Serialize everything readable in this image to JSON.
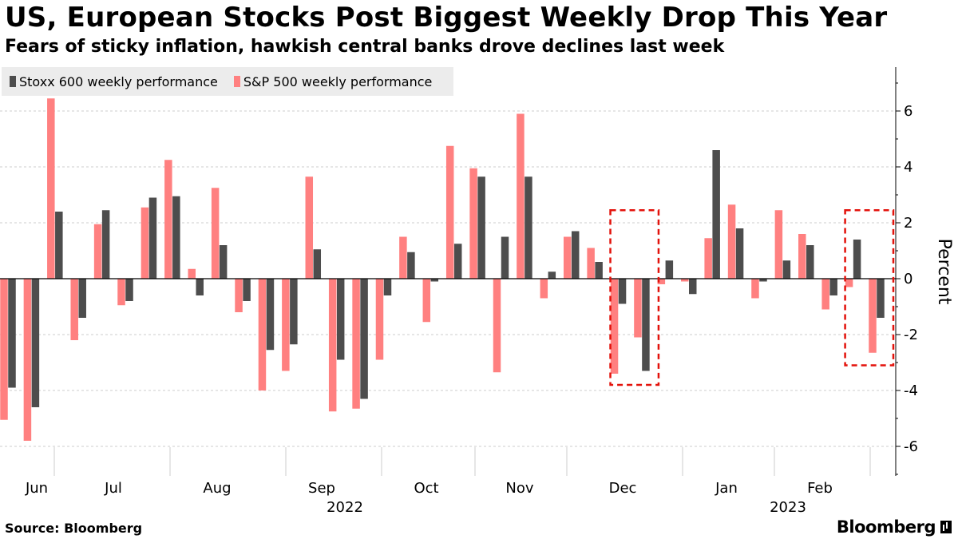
{
  "title": "US, European Stocks Post Biggest Weekly Drop This Year",
  "subtitle": "Fears of sticky inflation, hawkish central banks drove declines last week",
  "source": "Source: Bloomberg",
  "brand": "Bloomberg",
  "colors": {
    "stoxx": "#4d4d4d",
    "sp": "#ff8080",
    "highlight": "#e3120b",
    "grid": "#cccccc"
  },
  "chart_data": {
    "type": "bar",
    "ylabel": "Percent",
    "ylim": [
      -7,
      7.5
    ],
    "yticks": [
      -6,
      -4,
      -2,
      0,
      2,
      4,
      6
    ],
    "grid": "dashed horizontal at ticks",
    "legend": "top-left",
    "series": [
      {
        "name": "Stoxx 600 weekly performance",
        "values": [
          -3.9,
          -4.6,
          2.4,
          -1.4,
          2.45,
          -0.8,
          2.9,
          2.95,
          -0.6,
          1.2,
          -0.8,
          -2.55,
          -2.35,
          1.05,
          -2.9,
          -4.3,
          -0.6,
          0.95,
          -0.1,
          1.25,
          3.65,
          1.5,
          3.65,
          0.25,
          1.7,
          0.6,
          -0.9,
          -3.3,
          0.65,
          -0.55,
          4.6,
          1.8,
          -0.1,
          0.65,
          1.2,
          -0.6,
          1.4,
          -1.4
        ]
      },
      {
        "name": "S&P 500 weekly performance",
        "values": [
          -5.05,
          -5.8,
          6.45,
          -2.2,
          1.95,
          -0.95,
          2.55,
          4.25,
          0.35,
          3.25,
          -1.2,
          -4.0,
          -3.3,
          3.65,
          -4.75,
          -4.65,
          -2.9,
          1.5,
          -1.55,
          4.75,
          3.95,
          -3.35,
          5.9,
          -0.7,
          1.5,
          1.1,
          -3.4,
          -2.1,
          -0.2,
          -0.1,
          1.45,
          2.65,
          -0.7,
          2.45,
          1.6,
          -1.1,
          -0.3,
          -2.65
        ]
      }
    ],
    "x_month_labels": [
      "Jun",
      "Jul",
      "Aug",
      "Sep",
      "Oct",
      "Nov",
      "Dec",
      "Jan",
      "Feb"
    ],
    "x_year_labels": [
      "2022",
      "2023"
    ],
    "annotations": [
      {
        "type": "dashed-box",
        "from_week": 26,
        "to_week": 27,
        "ymin": -3.8,
        "ymax": 2.45
      },
      {
        "type": "dashed-box",
        "from_week": 36,
        "to_week": 37,
        "ymin": -3.1,
        "ymax": 2.45
      }
    ]
  }
}
